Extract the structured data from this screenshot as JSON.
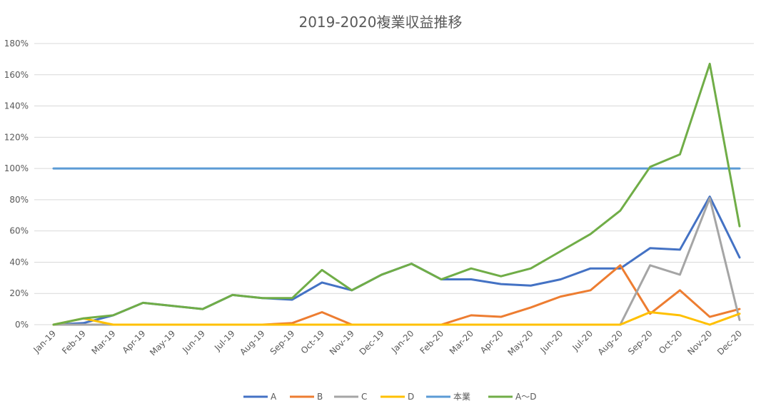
{
  "chart_data": {
    "type": "line",
    "title": "2019-2020複業収益推移",
    "xlabel": "",
    "ylabel": "",
    "ylim": [
      0,
      180
    ],
    "y_tick_step": 20,
    "y_tick_suffix": "%",
    "grid": "horizontal",
    "legend_position": "bottom",
    "categories": [
      "Jan-19",
      "Feb-19",
      "Mar-19",
      "Apr-19",
      "May-19",
      "Jun-19",
      "Jul-19",
      "Aug-19",
      "Sep-19",
      "Oct-19",
      "Nov-19",
      "Dec-19",
      "Jan-20",
      "Feb-20",
      "Mar-20",
      "Apr-20",
      "May-20",
      "Jun-20",
      "Jul-20",
      "Aug-20",
      "Sep-20",
      "Oct-20",
      "Nov-20",
      "Dec-20"
    ],
    "series": [
      {
        "name": "A",
        "color": "#4472C4",
        "values": [
          0,
          1,
          6,
          14,
          12,
          10,
          19,
          17,
          16,
          27,
          22,
          32,
          39,
          29,
          29,
          26,
          25,
          29,
          36,
          36,
          49,
          48,
          82,
          43
        ]
      },
      {
        "name": "B",
        "color": "#ED7D31",
        "values": [
          0,
          0,
          0,
          0,
          0,
          0,
          0,
          0,
          1,
          8,
          0,
          0,
          0,
          0,
          6,
          5,
          11,
          18,
          22,
          38,
          7,
          22,
          5,
          10
        ]
      },
      {
        "name": "C",
        "color": "#A5A5A5",
        "values": [
          0,
          0,
          0,
          0,
          0,
          0,
          0,
          0,
          0,
          0,
          0,
          0,
          0,
          0,
          0,
          0,
          0,
          0,
          0,
          0,
          38,
          32,
          81,
          3
        ]
      },
      {
        "name": "D",
        "color": "#FFC000",
        "values": [
          0,
          4,
          0,
          0,
          0,
          0,
          0,
          0,
          0,
          0,
          0,
          0,
          0,
          0,
          0,
          0,
          0,
          0,
          0,
          0,
          8,
          6,
          0,
          7
        ]
      },
      {
        "name": "本業",
        "color": "#5B9BD5",
        "values": [
          100,
          100,
          100,
          100,
          100,
          100,
          100,
          100,
          100,
          100,
          100,
          100,
          100,
          100,
          100,
          100,
          100,
          100,
          100,
          100,
          100,
          100,
          100,
          100
        ]
      },
      {
        "name": "A〜D",
        "color": "#70AD47",
        "values": [
          0,
          4,
          6,
          14,
          12,
          10,
          19,
          17,
          17,
          35,
          22,
          32,
          39,
          29,
          36,
          31,
          36,
          47,
          58,
          73,
          101,
          109,
          167,
          63
        ]
      }
    ]
  }
}
